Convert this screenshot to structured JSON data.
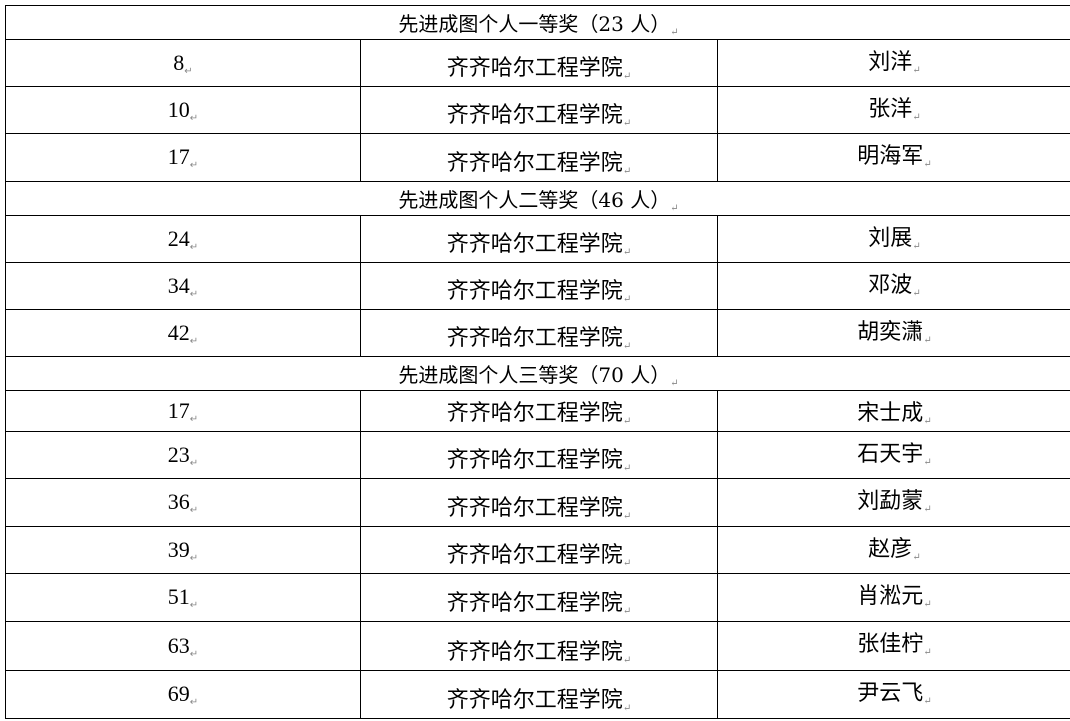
{
  "columns": [
    "number",
    "school",
    "name"
  ],
  "sections": [
    {
      "title": "先进成图个人一等奖（23 人）",
      "rows": [
        {
          "number": "8",
          "school": "齐齐哈尔工程学院",
          "name": "刘洋"
        },
        {
          "number": "10",
          "school": "齐齐哈尔工程学院",
          "name": "张洋"
        },
        {
          "number": "17",
          "school": "齐齐哈尔工程学院",
          "name": "明海军"
        }
      ]
    },
    {
      "title": "先进成图个人二等奖（46 人）",
      "rows": [
        {
          "number": "24",
          "school": "齐齐哈尔工程学院",
          "name": "刘展"
        },
        {
          "number": "34",
          "school": "齐齐哈尔工程学院",
          "name": "邓波"
        },
        {
          "number": "42",
          "school": "齐齐哈尔工程学院",
          "name": "胡奕潇"
        }
      ]
    },
    {
      "title": "先进成图个人三等奖（70 人）",
      "rows": [
        {
          "number": "17",
          "school": "齐齐哈尔工程学院",
          "name": "宋士成"
        },
        {
          "number": "23",
          "school": "齐齐哈尔工程学院",
          "name": "石天宇"
        },
        {
          "number": "36",
          "school": "齐齐哈尔工程学院",
          "name": "刘勐蒙"
        },
        {
          "number": "39",
          "school": "齐齐哈尔工程学院",
          "name": "赵彦"
        },
        {
          "number": "51",
          "school": "齐齐哈尔工程学院",
          "name": "肖淞元"
        },
        {
          "number": "63",
          "school": "齐齐哈尔工程学院",
          "name": "张佳柠"
        },
        {
          "number": "69",
          "school": "齐齐哈尔工程学院",
          "name": "尹云飞"
        }
      ]
    }
  ]
}
